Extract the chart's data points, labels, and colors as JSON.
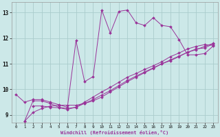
{
  "xlabel": "Windchill (Refroidissement éolien,°C)",
  "ylabel": "",
  "bg_color": "#cce8e8",
  "grid_color": "#aacccc",
  "line_color": "#993399",
  "xlim": [
    -0.5,
    23.5
  ],
  "ylim": [
    8.7,
    13.4
  ],
  "xticks": [
    0,
    1,
    2,
    3,
    4,
    5,
    6,
    7,
    8,
    9,
    10,
    11,
    12,
    13,
    14,
    15,
    16,
    17,
    18,
    19,
    20,
    21,
    22,
    23
  ],
  "yticks": [
    9,
    10,
    11,
    12,
    13
  ],
  "series": [
    {
      "x": [
        0,
        1,
        2,
        3,
        4,
        5,
        6,
        7,
        8,
        9,
        10,
        11,
        12,
        13,
        14,
        15,
        16,
        17,
        18,
        19,
        20,
        21,
        22,
        23
      ],
      "y": [
        9.8,
        9.5,
        9.6,
        9.6,
        9.5,
        9.4,
        9.3,
        11.9,
        10.3,
        10.5,
        13.1,
        12.2,
        13.05,
        13.1,
        12.6,
        12.5,
        12.8,
        12.5,
        12.45,
        11.95,
        11.35,
        11.35,
        11.4,
        11.7
      ]
    },
    {
      "x": [
        1,
        2,
        3,
        4,
        5,
        6,
        7,
        8,
        9,
        10,
        11,
        12,
        13,
        14,
        15,
        16,
        17,
        18,
        19,
        20,
        21,
        22,
        23
      ],
      "y": [
        8.75,
        9.55,
        9.55,
        9.45,
        9.3,
        9.25,
        9.3,
        9.45,
        9.6,
        9.78,
        9.95,
        10.15,
        10.35,
        10.52,
        10.68,
        10.84,
        11.0,
        11.15,
        11.3,
        11.45,
        11.55,
        11.68,
        11.8
      ]
    },
    {
      "x": [
        1,
        2,
        3,
        4,
        5,
        6,
        7,
        8,
        9,
        10,
        11,
        12,
        13,
        14,
        15,
        16,
        17,
        18,
        19,
        20,
        21,
        22,
        23
      ],
      "y": [
        8.75,
        9.1,
        9.25,
        9.35,
        9.38,
        9.38,
        9.38,
        9.45,
        9.55,
        9.7,
        9.9,
        10.1,
        10.3,
        10.48,
        10.65,
        10.82,
        11.0,
        11.12,
        11.28,
        11.45,
        11.58,
        11.62,
        11.78
      ]
    },
    {
      "x": [
        2,
        3,
        4,
        5,
        6,
        7,
        8,
        9,
        10,
        11,
        12,
        13,
        14,
        15,
        16,
        17,
        18,
        19,
        20,
        21,
        22,
        23
      ],
      "y": [
        9.35,
        9.35,
        9.3,
        9.28,
        9.22,
        9.3,
        9.5,
        9.7,
        9.9,
        10.08,
        10.28,
        10.48,
        10.62,
        10.78,
        10.92,
        11.08,
        11.28,
        11.42,
        11.58,
        11.68,
        11.75,
        11.72
      ]
    }
  ]
}
